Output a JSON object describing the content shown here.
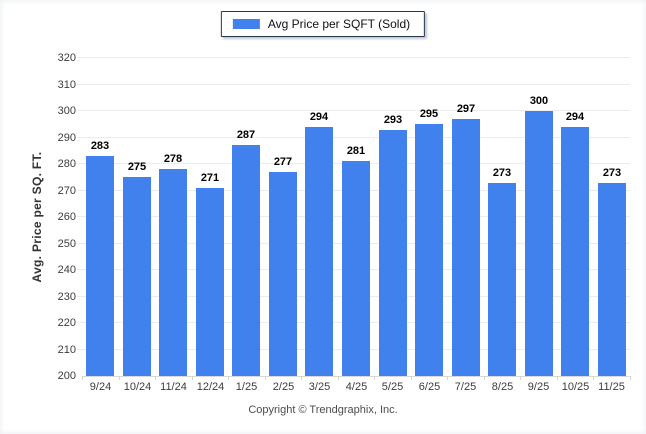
{
  "chart_data": {
    "type": "bar",
    "title": "",
    "legend": "Avg Price per SQFT (Sold)",
    "categories": [
      "9/24",
      "10/24",
      "11/24",
      "12/24",
      "1/25",
      "2/25",
      "3/25",
      "4/25",
      "5/25",
      "6/25",
      "7/25",
      "8/25",
      "9/25",
      "10/25",
      "11/25"
    ],
    "values": [
      283,
      275,
      278,
      271,
      287,
      277,
      294,
      281,
      293,
      295,
      297,
      273,
      300,
      294,
      273
    ],
    "ylabel": "Avg. Price per SQ. FT.",
    "xlabel": "",
    "ylim": [
      200,
      320
    ],
    "yticks": [
      200,
      210,
      220,
      230,
      240,
      250,
      260,
      270,
      280,
      290,
      300,
      310,
      320
    ],
    "grid": true,
    "legend_position": "top-center",
    "bar_color": "#4181ee",
    "gridline_color": "#ececec",
    "axis_line_color": "#d9d9d9"
  },
  "footer": {
    "copyright": "Copyright © Trendgraphix, Inc."
  }
}
